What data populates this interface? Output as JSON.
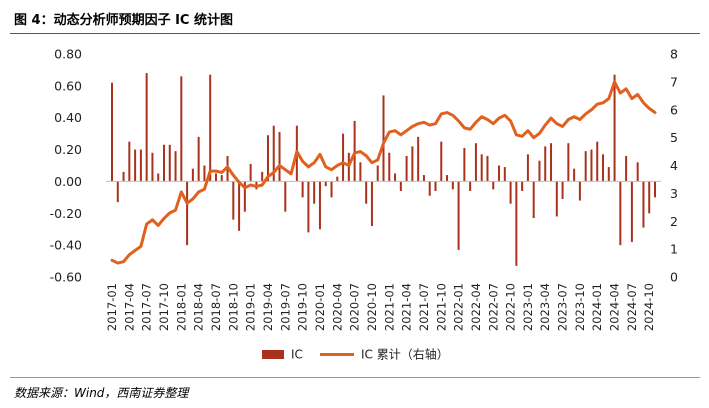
{
  "figure": {
    "title": "图 4：动态分析师预期因子 IC 统计图",
    "source": "数据来源：Wind，西南证券整理"
  },
  "chart_data": {
    "type": "bar+line",
    "legend_position": "bottom",
    "colors": {
      "bar": "#a8321c",
      "line": "#e06020"
    },
    "series": [
      {
        "name": "IC",
        "type": "bar",
        "axis": "left"
      },
      {
        "name": "IC 累计（右轴）",
        "type": "line",
        "axis": "right"
      }
    ],
    "y_left": {
      "min": -0.6,
      "max": 0.8,
      "ticks": [
        "0.80",
        "0.60",
        "0.40",
        "0.20",
        "0.00",
        "-0.20",
        "-0.40",
        "-0.60"
      ]
    },
    "y_right": {
      "min": 0,
      "max": 8,
      "ticks": [
        "8",
        "7",
        "6",
        "5",
        "4",
        "3",
        "2",
        "1",
        "0"
      ]
    },
    "x_tick_labels": [
      "2017-01",
      "2017-04",
      "2017-07",
      "2017-10",
      "2018-01",
      "2018-04",
      "2018-07",
      "2018-10",
      "2019-01",
      "2019-04",
      "2019-07",
      "2019-10",
      "2020-01",
      "2020-04",
      "2020-07",
      "2020-10",
      "2021-01",
      "2021-04",
      "2021-07",
      "2021-10",
      "2022-01",
      "2022-04",
      "2022-07",
      "2022-10",
      "2023-01",
      "2023-04",
      "2023-07",
      "2023-10",
      "2024-01",
      "2024-04",
      "2024-07",
      "2024-10"
    ],
    "months": [
      "2017-01",
      "2017-02",
      "2017-03",
      "2017-04",
      "2017-05",
      "2017-06",
      "2017-07",
      "2017-08",
      "2017-09",
      "2017-10",
      "2017-11",
      "2017-12",
      "2018-01",
      "2018-02",
      "2018-03",
      "2018-04",
      "2018-05",
      "2018-06",
      "2018-07",
      "2018-08",
      "2018-09",
      "2018-10",
      "2018-11",
      "2018-12",
      "2019-01",
      "2019-02",
      "2019-03",
      "2019-04",
      "2019-05",
      "2019-06",
      "2019-07",
      "2019-08",
      "2019-09",
      "2019-10",
      "2019-11",
      "2019-12",
      "2020-01",
      "2020-02",
      "2020-03",
      "2020-04",
      "2020-05",
      "2020-06",
      "2020-07",
      "2020-08",
      "2020-09",
      "2020-10",
      "2020-11",
      "2020-12",
      "2021-01",
      "2021-02",
      "2021-03",
      "2021-04",
      "2021-05",
      "2021-06",
      "2021-07",
      "2021-08",
      "2021-09",
      "2021-10",
      "2021-11",
      "2021-12",
      "2022-01",
      "2022-02",
      "2022-03",
      "2022-04",
      "2022-05",
      "2022-06",
      "2022-07",
      "2022-08",
      "2022-09",
      "2022-10",
      "2022-11",
      "2022-12",
      "2023-01",
      "2023-02",
      "2023-03",
      "2023-04",
      "2023-05",
      "2023-06",
      "2023-07",
      "2023-08",
      "2023-09",
      "2023-10",
      "2023-11",
      "2023-12",
      "2024-01",
      "2024-02",
      "2024-03",
      "2024-04",
      "2024-05",
      "2024-06",
      "2024-07",
      "2024-08",
      "2024-09",
      "2024-10",
      "2024-11"
    ],
    "ic": [
      0.62,
      -0.13,
      0.06,
      0.25,
      0.2,
      0.2,
      0.68,
      0.18,
      0.05,
      0.23,
      0.23,
      0.19,
      0.66,
      -0.4,
      0.08,
      0.28,
      0.1,
      0.67,
      0.05,
      0.04,
      0.16,
      -0.24,
      -0.31,
      -0.19,
      0.11,
      -0.05,
      0.06,
      0.29,
      0.35,
      0.31,
      -0.19,
      0.0,
      0.35,
      -0.1,
      -0.32,
      -0.14,
      -0.3,
      -0.03,
      -0.1,
      0.03,
      0.3,
      0.18,
      0.38,
      0.12,
      -0.14,
      -0.28,
      0.1,
      0.54,
      0.18,
      0.05,
      -0.06,
      0.16,
      0.22,
      0.28,
      0.04,
      -0.09,
      -0.06,
      0.25,
      0.04,
      -0.05,
      -0.43,
      0.21,
      -0.06,
      0.24,
      0.17,
      0.16,
      -0.05,
      0.1,
      0.09,
      -0.14,
      -0.53,
      -0.06,
      0.17,
      -0.23,
      0.13,
      0.22,
      0.24,
      -0.22,
      -0.11,
      0.24,
      0.08,
      -0.12,
      0.19,
      0.2,
      0.25,
      0.17,
      0.09,
      0.67,
      -0.4,
      0.16,
      -0.38,
      0.12,
      -0.29,
      -0.2,
      -0.1
    ],
    "cumulative_ic": [
      0.6,
      0.5,
      0.55,
      0.8,
      0.95,
      1.1,
      1.9,
      2.05,
      1.85,
      2.1,
      2.3,
      2.4,
      3.05,
      2.65,
      2.8,
      3.05,
      3.15,
      3.8,
      3.8,
      3.75,
      3.95,
      3.65,
      3.4,
      3.2,
      3.3,
      3.25,
      3.3,
      3.6,
      3.75,
      4.0,
      3.85,
      3.7,
      4.5,
      4.15,
      3.95,
      4.1,
      4.4,
      3.95,
      3.85,
      4.0,
      4.1,
      4.0,
      4.45,
      4.5,
      4.35,
      4.1,
      4.2,
      4.8,
      5.2,
      5.25,
      5.1,
      5.25,
      5.4,
      5.5,
      5.55,
      5.45,
      5.5,
      5.85,
      5.9,
      5.8,
      5.6,
      5.35,
      5.3,
      5.55,
      5.75,
      5.65,
      5.5,
      5.7,
      5.8,
      5.6,
      5.1,
      5.05,
      5.25,
      5.0,
      5.15,
      5.45,
      5.7,
      5.5,
      5.4,
      5.65,
      5.75,
      5.65,
      5.85,
      6.0,
      6.2,
      6.25,
      6.4,
      7.0,
      6.6,
      6.75,
      6.4,
      6.55,
      6.25,
      6.05,
      5.9
    ]
  }
}
